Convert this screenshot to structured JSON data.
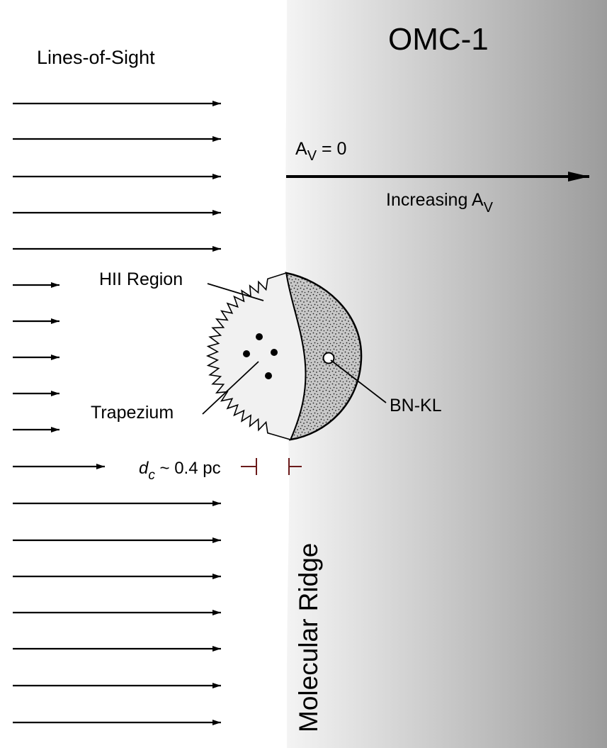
{
  "labels": {
    "title": "OMC-1",
    "lines_of_sight": "Lines-of-Sight",
    "av_prefix": "A",
    "av_sub": "V",
    "av_zero": " = 0",
    "increasing_prefix": "Increasing A",
    "increasing_sub": "V",
    "hii_region": "HII Region",
    "trapezium": "Trapezium",
    "bn_kl": "BN-KL",
    "dc_symbol": "d",
    "dc_sub": "c",
    "dc_value": " ~ 0.4 pc",
    "molecular_ridge": "Molecular Ridge"
  },
  "colors": {
    "cloud_light": "#f4f4f4",
    "cloud_dark": "#9c9c9c",
    "hii_fill": "#f1f1f1",
    "bnkl_fill": "#c8c8c8",
    "tick_color": "#6b1a1a"
  }
}
